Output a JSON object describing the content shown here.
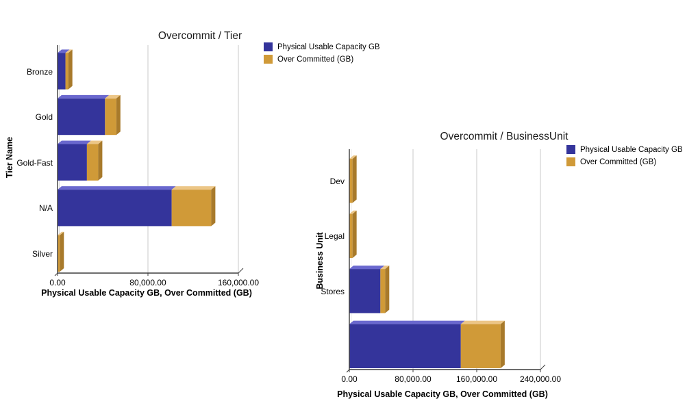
{
  "page": {
    "background": "#FFFFFF"
  },
  "colors": {
    "grid": "#C9C9C9",
    "wall": "#DCDCDC",
    "axis": "#3D3D3D",
    "text": "#000000",
    "title": "#1A1A1A"
  },
  "chart_data": [
    {
      "type": "bar",
      "orientation": "horizontal",
      "stacked": true,
      "title": "Overcommit / Tier",
      "xlabel": "Physical Usable Capacity GB, Over Committed (GB)",
      "ylabel": "Tier Name",
      "categories": [
        "Bronze",
        "Gold",
        "Gold-Fast",
        "N/A",
        "Silver"
      ],
      "series": [
        {
          "name": "Physical Usable Capacity GB",
          "color": "#34349B",
          "color_top": "#6A68CE",
          "color_side": "#232370",
          "values": [
            7000,
            42000,
            26000,
            101000,
            0
          ]
        },
        {
          "name": "Over Committed (GB)",
          "color": "#D09A38",
          "color_top": "#ECC687",
          "color_side": "#A87A2B",
          "values": [
            2500,
            10000,
            10000,
            35000,
            2000
          ]
        }
      ],
      "xlim": [
        0,
        160000
      ],
      "x_ticks": [
        0,
        80000,
        160000
      ],
      "x_tick_labels": [
        "0.00",
        "80,000.00",
        "160,000.00"
      ],
      "grid": true,
      "legend_position": "top-right"
    },
    {
      "type": "bar",
      "orientation": "horizontal",
      "stacked": true,
      "title": "Overcommit / BusinessUnit",
      "xlabel": "Physical Usable Capacity GB, Over Committed (GB)",
      "ylabel": "Business Unit",
      "categories": [
        "Dev",
        "Legal",
        "Stores",
        ""
      ],
      "series": [
        {
          "name": "Physical Usable Capacity GB",
          "color": "#34349B",
          "color_top": "#6A68CE",
          "color_side": "#232370",
          "values": [
            0,
            0,
            39000,
            140000
          ]
        },
        {
          "name": "Over Committed (GB)",
          "color": "#D09A38",
          "color_top": "#ECC687",
          "color_side": "#A87A2B",
          "values": [
            4000,
            4000,
            6000,
            50000
          ]
        }
      ],
      "xlim": [
        0,
        240000
      ],
      "x_ticks": [
        0,
        80000,
        160000,
        240000
      ],
      "x_tick_labels": [
        "0.00",
        "80,000.00",
        "160,000.00",
        "240,000.00"
      ],
      "grid": true,
      "legend_position": "top-right"
    }
  ]
}
